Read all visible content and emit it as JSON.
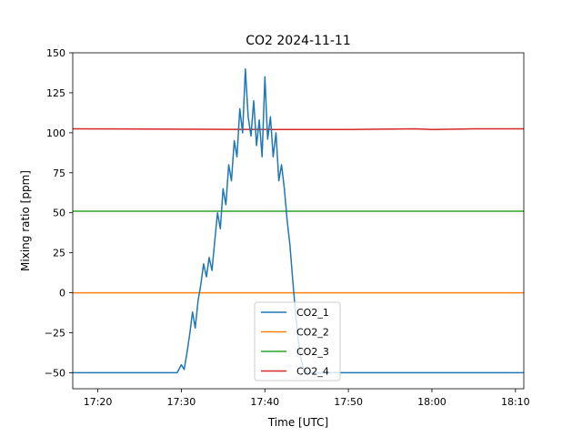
{
  "chart_data": {
    "type": "line",
    "title": "CO2 2024-11-11",
    "xlabel": "Time [UTC]",
    "ylabel": "Mixing ratio [ppm]",
    "xlim": [
      "17:17:00",
      "18:11:00"
    ],
    "ylim": [
      -60,
      150
    ],
    "x_ticks": [
      "17:20",
      "17:30",
      "17:40",
      "17:50",
      "18:00",
      "18:10"
    ],
    "y_ticks": [
      -50,
      -25,
      0,
      25,
      50,
      75,
      100,
      125,
      150
    ],
    "legend_position": "lower center",
    "grid": false,
    "series": [
      {
        "name": "CO2_1",
        "color": "#1f77b4",
        "x": [
          "17:17:00",
          "17:29:30",
          "17:30:00",
          "17:30:20",
          "17:30:40",
          "17:31:00",
          "17:31:20",
          "17:31:40",
          "17:32:00",
          "17:32:20",
          "17:32:40",
          "17:33:00",
          "17:33:20",
          "17:33:40",
          "17:34:00",
          "17:34:20",
          "17:34:40",
          "17:35:00",
          "17:35:20",
          "17:35:40",
          "17:36:00",
          "17:36:20",
          "17:36:40",
          "17:37:00",
          "17:37:20",
          "17:37:40",
          "17:38:00",
          "17:38:20",
          "17:38:40",
          "17:39:00",
          "17:39:20",
          "17:39:40",
          "17:40:00",
          "17:40:20",
          "17:40:40",
          "17:41:00",
          "17:41:20",
          "17:41:40",
          "17:42:00",
          "17:42:20",
          "17:42:40",
          "17:43:00",
          "17:43:20",
          "17:43:40",
          "17:44:00",
          "17:44:20",
          "17:44:40",
          "17:45:00",
          "17:45:30",
          "17:46:00",
          "18:11:00"
        ],
        "values": [
          -50,
          -50,
          -45,
          -48,
          -38,
          -26,
          -12,
          -22,
          -5,
          5,
          18,
          10,
          22,
          14,
          32,
          50,
          40,
          65,
          55,
          80,
          70,
          95,
          85,
          115,
          100,
          140,
          110,
          98,
          120,
          92,
          108,
          85,
          135,
          96,
          110,
          85,
          100,
          70,
          80,
          65,
          45,
          30,
          8,
          -12,
          -30,
          -42,
          -48,
          -50,
          -50,
          -50,
          -50
        ]
      },
      {
        "name": "CO2_2",
        "color": "#ff7f0e",
        "x": [
          "17:17:00",
          "18:11:00"
        ],
        "values": [
          0,
          0
        ]
      },
      {
        "name": "CO2_3",
        "color": "#2ca02c",
        "x": [
          "17:17:00",
          "18:11:00"
        ],
        "values": [
          51,
          51
        ]
      },
      {
        "name": "CO2_4",
        "color": "#d62728",
        "x": [
          "17:17:00",
          "17:41:00",
          "17:50:00",
          "17:58:00",
          "18:00:00",
          "18:05:00",
          "18:11:00"
        ],
        "values": [
          102.5,
          102,
          102,
          102.5,
          102,
          102.5,
          102.5
        ]
      }
    ]
  }
}
